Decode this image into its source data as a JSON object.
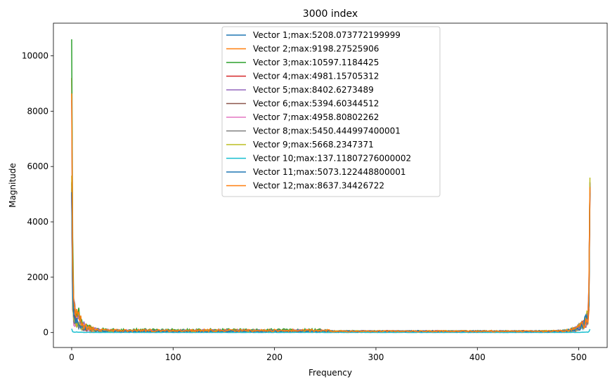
{
  "chart_data": {
    "type": "line",
    "title": "3000 index",
    "xlabel": "Frequency",
    "ylabel": "Magnitude",
    "xlim": [
      -18,
      528
    ],
    "ylim": [
      -540,
      11180
    ],
    "xticks": [
      0,
      100,
      200,
      300,
      400,
      500
    ],
    "yticks": [
      0,
      2000,
      4000,
      6000,
      8000,
      10000
    ],
    "grid": false,
    "legend_position": "top-center",
    "series": [
      {
        "name": "Vector 1;max:5208.073772199999",
        "color": "#1f77b4",
        "peak_start": 5208,
        "peak_end": 5300
      },
      {
        "name": "Vector 2;max:9198.27525906",
        "color": "#ff7f0e",
        "peak_start": 9198,
        "peak_end": 5100
      },
      {
        "name": "Vector 3;max:10597.1184425",
        "color": "#2ca02c",
        "peak_start": 10597,
        "peak_end": 5250
      },
      {
        "name": "Vector 4;max:4981.15705312",
        "color": "#d62728",
        "peak_start": 4981,
        "peak_end": 5150
      },
      {
        "name": "Vector 5;max:8402.6273489",
        "color": "#9467bd",
        "peak_start": 8402,
        "peak_end": 5420
      },
      {
        "name": "Vector 6;max:5394.60344512",
        "color": "#8c564b",
        "peak_start": 5394,
        "peak_end": 5390
      },
      {
        "name": "Vector 7;max:4958.80802262",
        "color": "#e377c2",
        "peak_start": 4958,
        "peak_end": 4900
      },
      {
        "name": "Vector 8;max:5450.444997400001",
        "color": "#7f7f7f",
        "peak_start": 5450,
        "peak_end": 5440
      },
      {
        "name": "Vector 9;max:5668.2347371",
        "color": "#bcbd22",
        "peak_start": 5668,
        "peak_end": 5600
      },
      {
        "name": "Vector 10;max:137.11807276000002",
        "color": "#17becf",
        "peak_start": 137,
        "peak_end": 120
      },
      {
        "name": "Vector 11;max:5073.122448800001",
        "color": "#1f77b4",
        "peak_start": 5073,
        "peak_end": 5050
      },
      {
        "name": "Vector 12;max:8637.34426722",
        "color": "#ff7f0e",
        "peak_start": 8637,
        "peak_end": 5260
      }
    ],
    "x_count": 512
  }
}
